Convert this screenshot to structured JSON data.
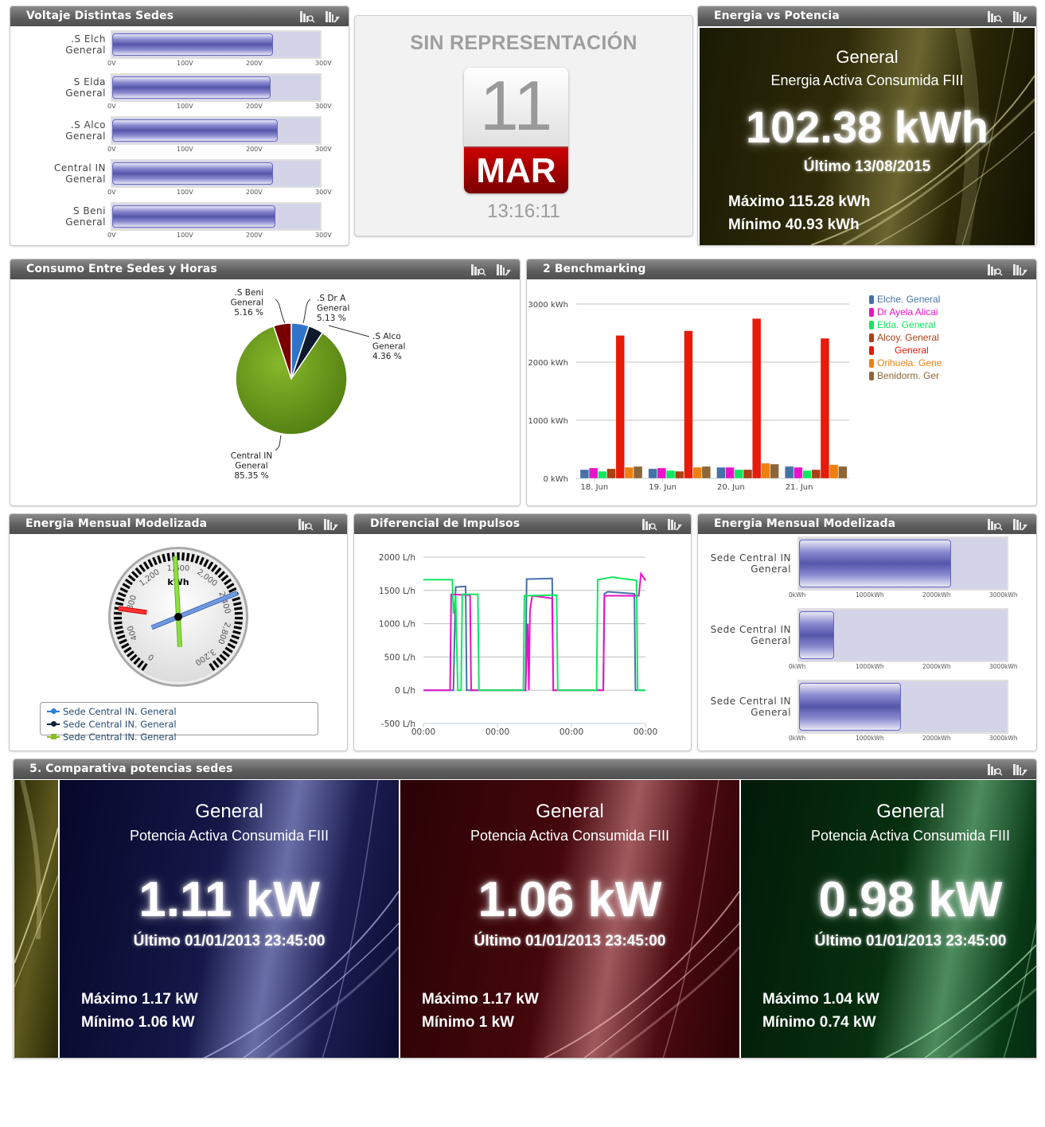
{
  "colors": {
    "header_bg": "#5c5c5c",
    "bullet_fill": "#5555aa",
    "bullet_track": "#d4d4e8",
    "calendar_red": "#bb0000"
  },
  "voltage_panel": {
    "title": "Voltaje Distintas Sedes",
    "axis_ticks": [
      "0V",
      "100V",
      "200V",
      "300V"
    ],
    "rows": [
      {
        "label_line1": ".S Elch",
        "label_line2": "General",
        "value": 232
      },
      {
        "label_line1": "S Elda",
        "label_line2": "General",
        "value": 229
      },
      {
        "label_line1": ".S Alco",
        "label_line2": "General",
        "value": 239
      },
      {
        "label_line1": "Central IN",
        "label_line2": "General",
        "value": 232
      },
      {
        "label_line1": "S Beni",
        "label_line2": "General",
        "value": 236
      }
    ]
  },
  "calendar": {
    "title": "SIN REPRESENTACIÓN",
    "day": "11",
    "month": "MAR",
    "time": "13:16:11"
  },
  "energy_vs_power": {
    "title": "Energia vs Potencia",
    "card": {
      "name": "General",
      "metric": "Energia Activa Consumida FIII",
      "value": "102.38 kWh",
      "last": "Último 13/08/2015",
      "max": "Máximo 115.28 kWh",
      "min": "Mínimo 40.93 kWh"
    }
  },
  "consumption_panel": {
    "title": "Consumo Entre Sedes y Horas",
    "slices": [
      {
        "label1": ".S Beni",
        "label2": "General",
        "pct": "5.16 %",
        "color": "#7a0000"
      },
      {
        "label1": ".S Dr A",
        "label2": "General",
        "pct": "5.13 %",
        "color": "#2f74c8"
      },
      {
        "label1": ".S Alco",
        "label2": "General",
        "pct": "4.36 %",
        "color": "#0e1a2c"
      },
      {
        "label1": "Central IN",
        "label2": "General",
        "pct": "85.35 %",
        "color": "#6aa01c"
      }
    ]
  },
  "benchmark_panel": {
    "title": "2 Benchmarking",
    "y_ticks": [
      "3000 kWh",
      "2000 kWh",
      "1000 kWh",
      "0 kWh"
    ],
    "legend": [
      {
        "label": "Elche. General",
        "color": "#4572a7"
      },
      {
        "label": "Dr Ayela Alicai",
        "color": "#e812c8"
      },
      {
        "label": "Elda. General",
        "color": "#0ee860"
      },
      {
        "label": "Alcoy. General",
        "color": "#aa4014"
      },
      {
        "label": "General",
        "color": "#e81a08"
      },
      {
        "label": "Orihuela. Gene",
        "color": "#ee8010"
      },
      {
        "label": "Benidorm. Ger",
        "color": "#8c6636"
      }
    ]
  },
  "gauge_panel": {
    "title": "Energia Mensual Modelizada",
    "unit": "kWh",
    "ticks": [
      "0",
      "400",
      "800",
      "1,200",
      "1,600",
      "2,000",
      "2,400",
      "2,800",
      "3,200"
    ],
    "legend": [
      {
        "label": "Sede Central IN. General",
        "color": "#2f7ed8"
      },
      {
        "label": "Sede Central IN. General",
        "color": "#0d233a"
      },
      {
        "label": "Sede Central IN. General",
        "color": "#8bbc21"
      }
    ]
  },
  "impulse_panel": {
    "title": "Diferencial de Impulsos",
    "y_ticks": [
      "2000 L/h",
      "1500 L/h",
      "1000 L/h",
      "500 L/h",
      "0 L/h",
      "-500 L/h"
    ],
    "x_ticks": [
      "00:00",
      "00:00",
      "00:00",
      "00:00"
    ]
  },
  "monthly_bullets": {
    "title": "Energia Mensual Modelizada",
    "axis_ticks": [
      "0kWh",
      "1000kWh",
      "2000kWh",
      "3000kWh"
    ],
    "rows": [
      {
        "label_line1": "Sede Central IN",
        "label_line2": "General",
        "value": 2270
      },
      {
        "label_line1": "Sede Central IN",
        "label_line2": "General",
        "value": 520
      },
      {
        "label_line1": "Sede Central IN",
        "label_line2": "General",
        "value": 1520
      }
    ]
  },
  "comparativa_panel": {
    "title": "5. Comparativa potencias sedes",
    "cards": [
      {
        "name": "General",
        "metric": "Potencia Activa Consumida FIII",
        "value": "1.11 kW",
        "last": "Último 01/01/2013 23:45:00",
        "max": "Máximo 1.17 kW",
        "min": "Mínimo 1.06 kW",
        "theme": "blue"
      },
      {
        "name": "General",
        "metric": "Potencia Activa Consumida FIII",
        "value": "1.06 kW",
        "last": "Último 01/01/2013 23:45:00",
        "max": "Máximo 1.17 kW",
        "min": "Mínimo 1 kW",
        "theme": "red"
      },
      {
        "name": "General",
        "metric": "Potencia Activa Consumida FIII",
        "value": "0.98 kW",
        "last": "Último 01/01/2013 23:45:00",
        "max": "Máximo 1.04 kW",
        "min": "Mínimo 0.74 kW",
        "theme": "green"
      }
    ]
  },
  "chart_data": [
    {
      "type": "bar",
      "title": "Voltaje Distintas Sedes",
      "orientation": "horizontal",
      "categories": [
        ".S Elch General",
        "S Elda General",
        ".S Alco General",
        "Central IN General",
        "S Beni General"
      ],
      "values": [
        232,
        229,
        239,
        232,
        236
      ],
      "xlabel": "",
      "ylabel": "",
      "xlim": [
        0,
        300
      ],
      "tick_labels": [
        "0V",
        "100V",
        "200V",
        "300V"
      ]
    },
    {
      "type": "pie",
      "title": "Consumo Entre Sedes y Horas",
      "categories": [
        ".S Beni General",
        ".S Dr A General",
        ".S Alco General",
        "Central IN General"
      ],
      "values": [
        5.16,
        5.13,
        4.36,
        85.35
      ]
    },
    {
      "type": "bar",
      "title": "2 Benchmarking",
      "categories": [
        "18. Jun",
        "19. Jun",
        "20. Jun",
        "21. Jun"
      ],
      "ylim": [
        0,
        3000
      ],
      "ylabel": "kWh",
      "grid": true,
      "legend_position": "right",
      "series": [
        {
          "name": "Elche. General",
          "values": [
            150,
            165,
            190,
            205
          ]
        },
        {
          "name": "Dr Ayela Alicai",
          "values": [
            178,
            178,
            190,
            190
          ]
        },
        {
          "name": "Elda. General",
          "values": [
            122,
            135,
            150,
            135
          ]
        },
        {
          "name": "Alcoy. General",
          "values": [
            165,
            122,
            150,
            150
          ]
        },
        {
          "name": "General",
          "values": [
            2460,
            2540,
            2750,
            2410
          ]
        },
        {
          "name": "Orihuela. Gene",
          "values": [
            190,
            190,
            260,
            235
          ]
        },
        {
          "name": "Benidorm. Ger",
          "values": [
            205,
            205,
            245,
            205
          ]
        }
      ]
    },
    {
      "type": "gauge",
      "title": "Energia Mensual Modelizada",
      "unit": "kWh",
      "range": [
        0,
        3200
      ],
      "series": [
        {
          "name": "Sede Central IN. General",
          "value": 2270
        },
        {
          "name": "Sede Central IN. General",
          "value": 520
        },
        {
          "name": "Sede Central IN. General",
          "value": 1520
        }
      ]
    },
    {
      "type": "line",
      "title": "Diferencial de Impulsos",
      "ylim": [
        -500,
        2000
      ],
      "ylabel": "L/h",
      "x": [
        "00:00",
        "00:00",
        "00:00",
        "00:00"
      ],
      "series": [
        {
          "name": "blue",
          "values": [
            0,
            0,
            1580,
            1560,
            0,
            0,
            0,
            1680,
            1660,
            1690,
            0,
            0,
            1450,
            1420,
            0,
            0
          ]
        },
        {
          "name": "magenta",
          "values": [
            0,
            1440,
            1420,
            0,
            0,
            0,
            0,
            1300,
            1400,
            1380,
            0,
            0,
            1420,
            1430,
            1440,
            1650
          ]
        },
        {
          "name": "green",
          "values": [
            1660,
            1660,
            1420,
            1450,
            0,
            0,
            1420,
            1430,
            1420,
            0,
            0,
            1650,
            1700,
            1680,
            0,
            0
          ]
        }
      ]
    },
    {
      "type": "bar",
      "title": "Energia Mensual Modelizada",
      "orientation": "horizontal",
      "categories": [
        "Sede Central IN General",
        "Sede Central IN General",
        "Sede Central IN General"
      ],
      "values": [
        2270,
        520,
        1520
      ],
      "xlim": [
        0,
        3100
      ],
      "tick_labels": [
        "0kWh",
        "1000kWh",
        "2000kWh",
        "3000kWh"
      ]
    }
  ]
}
